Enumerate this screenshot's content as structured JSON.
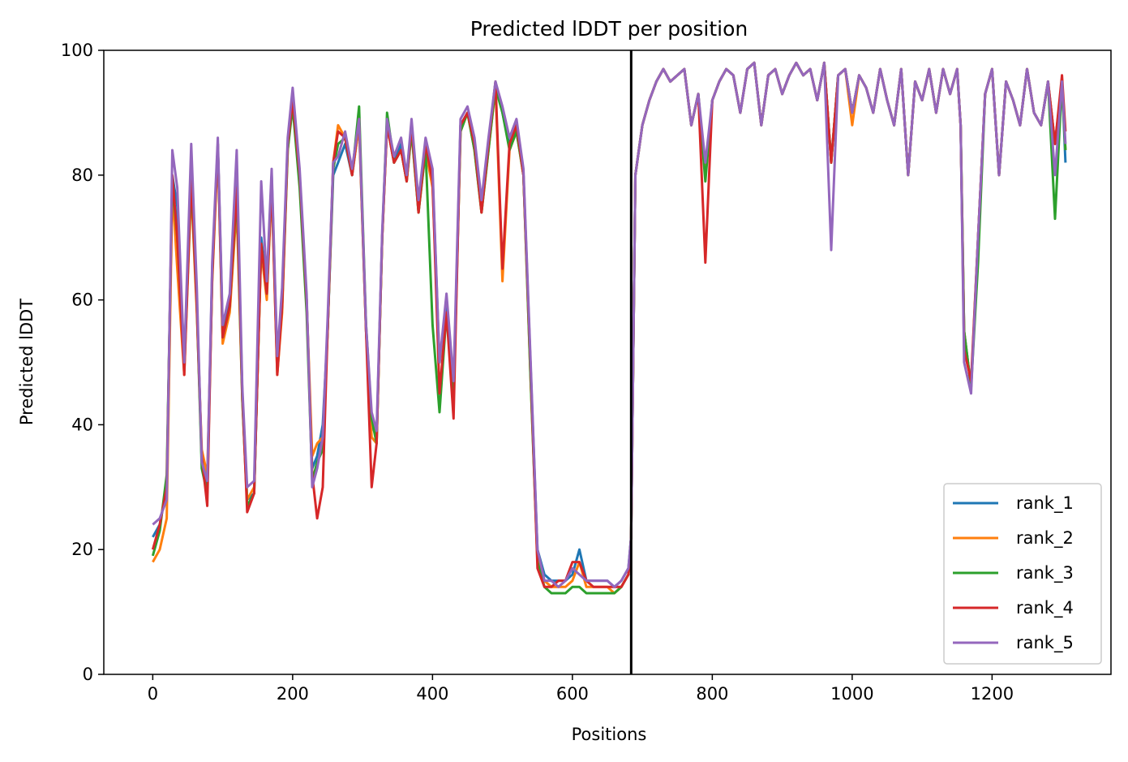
{
  "chart_data": {
    "type": "line",
    "title": "Predicted lDDT per position",
    "xlabel": "Positions",
    "ylabel": "Predicted lDDT",
    "xlim": [
      -70,
      1370
    ],
    "ylim": [
      0,
      100
    ],
    "xticks": [
      0,
      200,
      400,
      600,
      800,
      1000,
      1200
    ],
    "yticks": [
      0,
      20,
      40,
      60,
      80,
      100
    ],
    "grid": false,
    "legend_position": "lower-right",
    "boundary_line": {
      "x": 684,
      "color": "#000000"
    },
    "x": [
      0,
      10,
      20,
      28,
      35,
      45,
      55,
      63,
      70,
      78,
      85,
      93,
      100,
      110,
      120,
      128,
      135,
      145,
      155,
      163,
      170,
      178,
      185,
      193,
      200,
      210,
      220,
      228,
      235,
      243,
      250,
      258,
      265,
      275,
      285,
      295,
      305,
      313,
      320,
      328,
      335,
      345,
      355,
      363,
      370,
      380,
      390,
      400,
      410,
      420,
      430,
      440,
      450,
      460,
      470,
      480,
      490,
      500,
      510,
      520,
      530,
      540,
      550,
      560,
      570,
      580,
      590,
      600,
      610,
      620,
      630,
      640,
      650,
      660,
      670,
      680,
      684,
      690,
      700,
      710,
      720,
      730,
      740,
      750,
      760,
      770,
      780,
      790,
      800,
      810,
      820,
      830,
      840,
      850,
      860,
      870,
      880,
      890,
      900,
      910,
      920,
      930,
      940,
      950,
      960,
      970,
      980,
      990,
      1000,
      1010,
      1020,
      1030,
      1040,
      1050,
      1060,
      1070,
      1080,
      1090,
      1100,
      1110,
      1120,
      1130,
      1140,
      1150,
      1155,
      1160,
      1170,
      1180,
      1190,
      1200,
      1210,
      1220,
      1230,
      1240,
      1250,
      1260,
      1270,
      1280,
      1290,
      1300,
      1305
    ],
    "series": [
      {
        "name": "rank_1",
        "color": "#1f77b4",
        "values": [
          22,
          24,
          30,
          80,
          75,
          50,
          80,
          60,
          34,
          30,
          65,
          85,
          55,
          60,
          80,
          45,
          28,
          29,
          70,
          62,
          80,
          50,
          60,
          85,
          92,
          80,
          60,
          33,
          35,
          40,
          55,
          80,
          82,
          85,
          80,
          88,
          55,
          40,
          38,
          70,
          88,
          82,
          85,
          80,
          88,
          75,
          85,
          80,
          50,
          60,
          45,
          88,
          90,
          85,
          75,
          85,
          95,
          90,
          85,
          88,
          80,
          50,
          20,
          16,
          15,
          15,
          15,
          16,
          20,
          15,
          15,
          15,
          15,
          14,
          15,
          17,
          22,
          80,
          88,
          92,
          95,
          97,
          95,
          96,
          97,
          88,
          93,
          80,
          92,
          95,
          97,
          96,
          90,
          97,
          98,
          88,
          96,
          97,
          93,
          96,
          98,
          96,
          97,
          92,
          98,
          82,
          96,
          97,
          90,
          96,
          94,
          90,
          97,
          92,
          88,
          97,
          80,
          95,
          92,
          97,
          90,
          97,
          93,
          97,
          88,
          55,
          46,
          70,
          93,
          97,
          80,
          95,
          92,
          88,
          97,
          90,
          88,
          95,
          85,
          95,
          82
        ]
      },
      {
        "name": "rank_2",
        "color": "#ff7f0e",
        "values": [
          18,
          20,
          25,
          78,
          65,
          48,
          78,
          58,
          36,
          32,
          63,
          84,
          53,
          58,
          75,
          44,
          28,
          30,
          68,
          60,
          78,
          48,
          58,
          84,
          92,
          80,
          60,
          35,
          37,
          38,
          55,
          82,
          88,
          86,
          80,
          88,
          55,
          38,
          37,
          70,
          88,
          82,
          84,
          79,
          87,
          74,
          84,
          78,
          50,
          58,
          44,
          87,
          90,
          84,
          74,
          84,
          94,
          63,
          84,
          87,
          80,
          48,
          19,
          15,
          14,
          14,
          14,
          15,
          18,
          14,
          14,
          14,
          14,
          13,
          14,
          16,
          22,
          80,
          88,
          92,
          95,
          97,
          95,
          96,
          97,
          88,
          93,
          80,
          92,
          95,
          97,
          96,
          90,
          97,
          98,
          88,
          96,
          97,
          93,
          96,
          98,
          96,
          97,
          92,
          98,
          82,
          96,
          97,
          88,
          96,
          94,
          90,
          97,
          92,
          88,
          97,
          80,
          95,
          92,
          97,
          90,
          97,
          93,
          97,
          88,
          55,
          46,
          70,
          93,
          97,
          80,
          95,
          92,
          88,
          97,
          90,
          88,
          95,
          85,
          95,
          84
        ]
      },
      {
        "name": "rank_3",
        "color": "#2ca02c",
        "values": [
          19,
          23,
          32,
          79,
          70,
          49,
          79,
          59,
          33,
          29,
          64,
          85,
          54,
          59,
          77,
          44,
          27,
          29,
          69,
          61,
          79,
          49,
          59,
          84,
          91,
          78,
          58,
          31,
          34,
          36,
          55,
          81,
          85,
          86,
          80,
          91,
          56,
          41,
          37,
          70,
          90,
          82,
          84,
          79,
          87,
          74,
          84,
          56,
          42,
          58,
          44,
          87,
          90,
          84,
          74,
          84,
          94,
          90,
          84,
          87,
          80,
          48,
          18,
          14,
          13,
          13,
          13,
          14,
          14,
          13,
          13,
          13,
          13,
          13,
          14,
          16,
          22,
          80,
          88,
          92,
          95,
          97,
          95,
          96,
          97,
          88,
          93,
          79,
          92,
          95,
          97,
          96,
          90,
          97,
          98,
          88,
          96,
          97,
          93,
          96,
          98,
          96,
          97,
          92,
          98,
          82,
          96,
          97,
          90,
          96,
          94,
          90,
          97,
          92,
          88,
          97,
          80,
          95,
          92,
          97,
          90,
          97,
          93,
          97,
          88,
          55,
          46,
          66,
          93,
          97,
          80,
          95,
          92,
          88,
          97,
          90,
          88,
          95,
          73,
          95,
          84
        ]
      },
      {
        "name": "rank_4",
        "color": "#d62728",
        "values": [
          20,
          24,
          30,
          80,
          70,
          48,
          80,
          59,
          35,
          27,
          64,
          85,
          54,
          59,
          78,
          45,
          26,
          29,
          69,
          61,
          79,
          48,
          59,
          85,
          92,
          80,
          60,
          32,
          25,
          30,
          55,
          82,
          87,
          86,
          80,
          89,
          55,
          30,
          37,
          70,
          88,
          82,
          84,
          79,
          88,
          74,
          85,
          79,
          45,
          58,
          41,
          88,
          90,
          85,
          74,
          85,
          95,
          65,
          85,
          88,
          80,
          50,
          17,
          14,
          14,
          15,
          15,
          18,
          18,
          15,
          14,
          14,
          14,
          14,
          14,
          16,
          22,
          80,
          88,
          92,
          95,
          97,
          95,
          96,
          97,
          88,
          93,
          66,
          92,
          95,
          97,
          96,
          90,
          97,
          98,
          88,
          96,
          97,
          93,
          96,
          98,
          96,
          97,
          92,
          98,
          82,
          96,
          97,
          90,
          96,
          94,
          90,
          97,
          92,
          88,
          97,
          80,
          95,
          92,
          97,
          90,
          97,
          93,
          97,
          88,
          52,
          47,
          70,
          93,
          97,
          80,
          95,
          92,
          88,
          97,
          90,
          88,
          95,
          85,
          96,
          87
        ]
      },
      {
        "name": "rank_5",
        "color": "#9467bd",
        "values": [
          24,
          25,
          28,
          84,
          78,
          50,
          85,
          62,
          34,
          31,
          66,
          86,
          56,
          61,
          84,
          46,
          30,
          31,
          79,
          63,
          81,
          51,
          62,
          86,
          94,
          81,
          61,
          30,
          33,
          38,
          57,
          82,
          83,
          87,
          81,
          89,
          56,
          42,
          39,
          71,
          89,
          83,
          86,
          80,
          89,
          76,
          86,
          81,
          50,
          61,
          47,
          89,
          91,
          86,
          76,
          86,
          95,
          91,
          86,
          89,
          81,
          51,
          20,
          15,
          15,
          14,
          15,
          17,
          16,
          15,
          15,
          15,
          15,
          14,
          15,
          17,
          22,
          80,
          88,
          92,
          95,
          97,
          95,
          96,
          97,
          88,
          93,
          82,
          92,
          95,
          97,
          96,
          90,
          97,
          98,
          88,
          96,
          97,
          93,
          96,
          98,
          96,
          97,
          92,
          98,
          68,
          96,
          97,
          90,
          96,
          94,
          90,
          97,
          92,
          88,
          97,
          80,
          95,
          92,
          97,
          90,
          97,
          93,
          97,
          88,
          50,
          45,
          70,
          93,
          97,
          80,
          95,
          92,
          88,
          97,
          90,
          88,
          95,
          80,
          95,
          85
        ]
      }
    ]
  }
}
